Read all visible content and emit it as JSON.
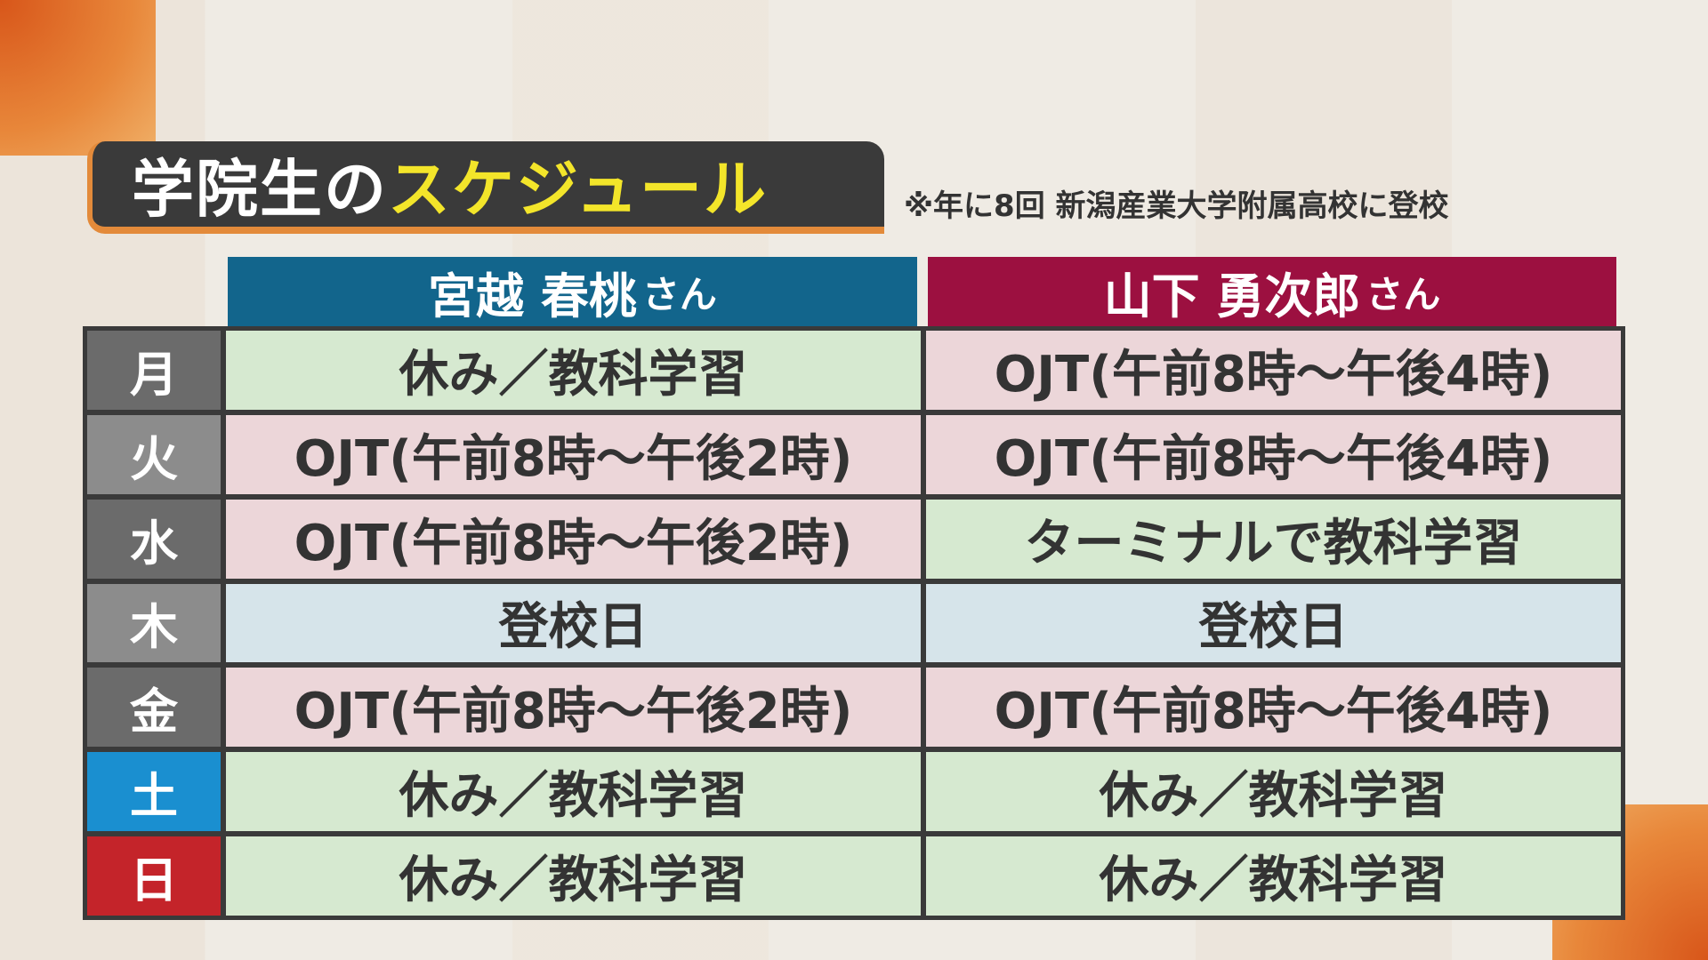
{
  "title": {
    "white": "学院生の",
    "yellow": "スケジュール"
  },
  "note": "※年に8回 新潟産業大学附属高校に登校",
  "columns": [
    {
      "name": "宮越 春桃",
      "suffix": "さん",
      "color": "#12658c"
    },
    {
      "name": "山下 勇次郎",
      "suffix": "さん",
      "color": "#9c1040"
    }
  ],
  "rows": [
    {
      "day": "月",
      "day_color": "#6b6b6b",
      "cells": [
        {
          "text": "休み／教科学習",
          "type": "green"
        },
        {
          "text": "OJT(午前8時〜午後4時)",
          "type": "pink"
        }
      ]
    },
    {
      "day": "火",
      "day_color": "#8c8c8c",
      "cells": [
        {
          "text": "OJT(午前8時〜午後2時)",
          "type": "pink"
        },
        {
          "text": "OJT(午前8時〜午後4時)",
          "type": "pink"
        }
      ]
    },
    {
      "day": "水",
      "day_color": "#6b6b6b",
      "cells": [
        {
          "text": "OJT(午前8時〜午後2時)",
          "type": "pink"
        },
        {
          "text": "ターミナルで教科学習",
          "type": "green"
        }
      ]
    },
    {
      "day": "木",
      "day_color": "#8c8c8c",
      "cells": [
        {
          "text": "登校日",
          "type": "blue"
        },
        {
          "text": "登校日",
          "type": "blue"
        }
      ]
    },
    {
      "day": "金",
      "day_color": "#6b6b6b",
      "cells": [
        {
          "text": "OJT(午前8時〜午後2時)",
          "type": "pink"
        },
        {
          "text": "OJT(午前8時〜午後4時)",
          "type": "pink"
        }
      ]
    },
    {
      "day": "土",
      "day_color": "#1a8fd0",
      "cells": [
        {
          "text": "休み／教科学習",
          "type": "green"
        },
        {
          "text": "休み／教科学習",
          "type": "green"
        }
      ]
    },
    {
      "day": "日",
      "day_color": "#c4242a",
      "cells": [
        {
          "text": "休み／教科学習",
          "type": "green"
        },
        {
          "text": "休み／教科学習",
          "type": "green"
        }
      ]
    }
  ]
}
